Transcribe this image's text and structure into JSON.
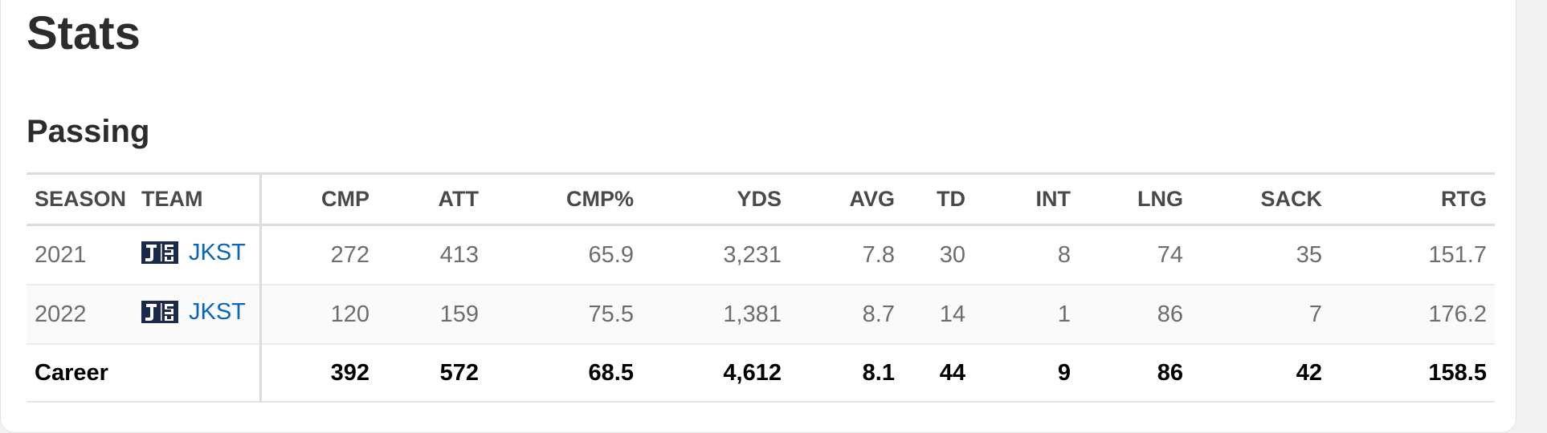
{
  "page": {
    "title": "Stats"
  },
  "section": {
    "title": "Passing"
  },
  "table": {
    "headers": [
      "SEASON",
      "TEAM",
      "CMP",
      "ATT",
      "CMP%",
      "YDS",
      "AVG",
      "TD",
      "INT",
      "LNG",
      "SACK",
      "RTG"
    ],
    "rows": [
      {
        "season": "2021",
        "team": "JKST",
        "team_logo": "jsu-logo-icon",
        "stats": [
          "272",
          "413",
          "65.9",
          "3,231",
          "7.8",
          "30",
          "8",
          "74",
          "35",
          "151.7"
        ]
      },
      {
        "season": "2022",
        "team": "JKST",
        "team_logo": "jsu-logo-icon",
        "stats": [
          "120",
          "159",
          "75.5",
          "1,381",
          "8.7",
          "14",
          "1",
          "86",
          "7",
          "176.2"
        ]
      }
    ],
    "career": {
      "label": "Career",
      "stats": [
        "392",
        "572",
        "68.5",
        "4,612",
        "8.1",
        "44",
        "9",
        "86",
        "42",
        "158.5"
      ]
    }
  },
  "colors": {
    "team_link": "#0766b8",
    "logo_navy": "#1b2a4a"
  }
}
